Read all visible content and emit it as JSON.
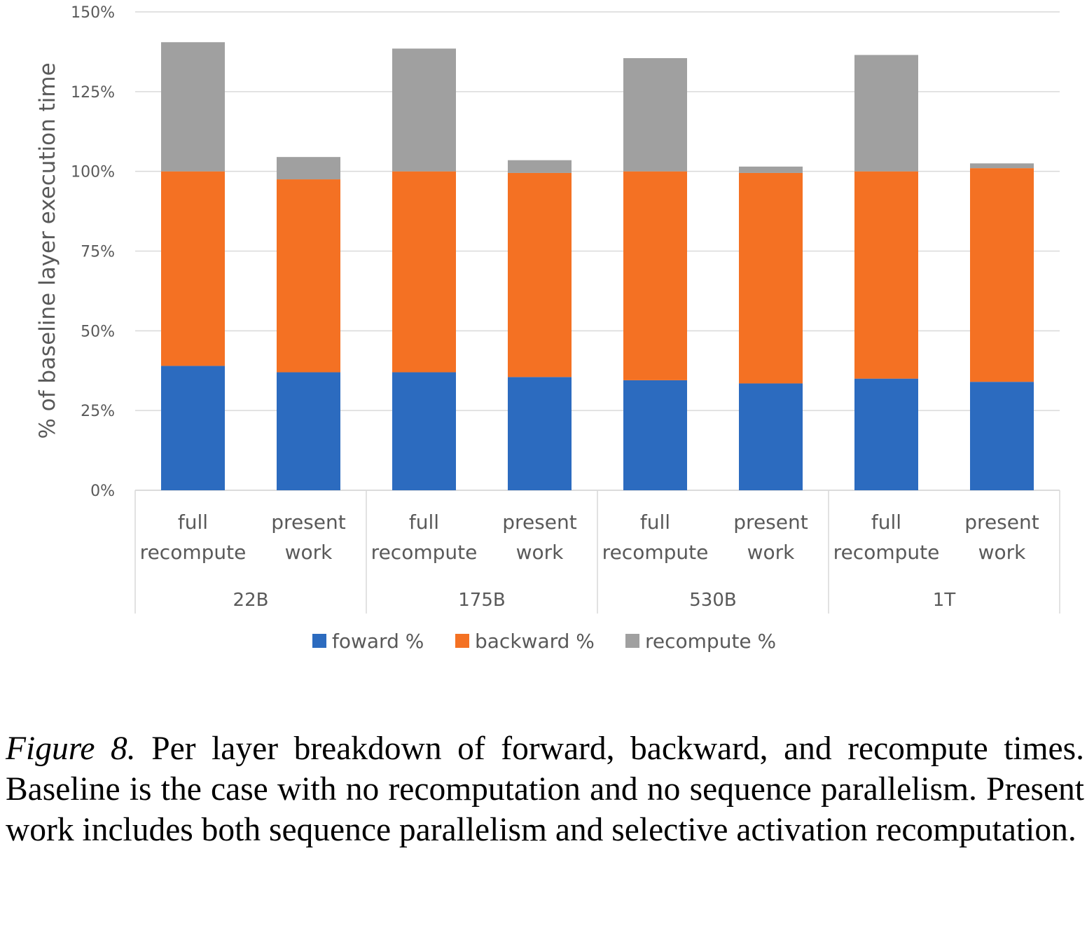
{
  "chart_data": {
    "type": "bar",
    "stacked": true,
    "ylabel": "% of baseline layer execution time",
    "ylim": [
      0,
      150
    ],
    "yticks": [
      "0%",
      "25%",
      "50%",
      "75%",
      "100%",
      "125%",
      "150%"
    ],
    "grid": true,
    "legend_position": "bottom",
    "groups": [
      "22B",
      "175B",
      "530B",
      "1T"
    ],
    "categories": [
      "full recompute",
      "present work",
      "full recompute",
      "present work",
      "full recompute",
      "present work",
      "full recompute",
      "present work"
    ],
    "category_lines": [
      [
        "full",
        "recompute"
      ],
      [
        "present",
        "work"
      ]
    ],
    "series": [
      {
        "name": "foward %",
        "color": "#2C6BBF",
        "values": [
          39,
          37,
          37,
          35.5,
          34.5,
          33.5,
          35,
          34
        ]
      },
      {
        "name": "backward %",
        "color": "#F47123",
        "values": [
          61,
          60.5,
          63,
          64,
          65.5,
          66,
          65,
          67
        ]
      },
      {
        "name": "recompute %",
        "color": "#A0A0A0",
        "values": [
          40.5,
          7,
          38.5,
          4,
          35.5,
          2,
          36.5,
          1.5
        ]
      }
    ]
  },
  "caption": {
    "label": "Figure 8.",
    "text": "Per layer breakdown of forward, backward, and recompute times. Baseline is the case with no recomputation and no sequence parallelism. Present work includes both sequence parallelism and selective activation recomputation."
  }
}
